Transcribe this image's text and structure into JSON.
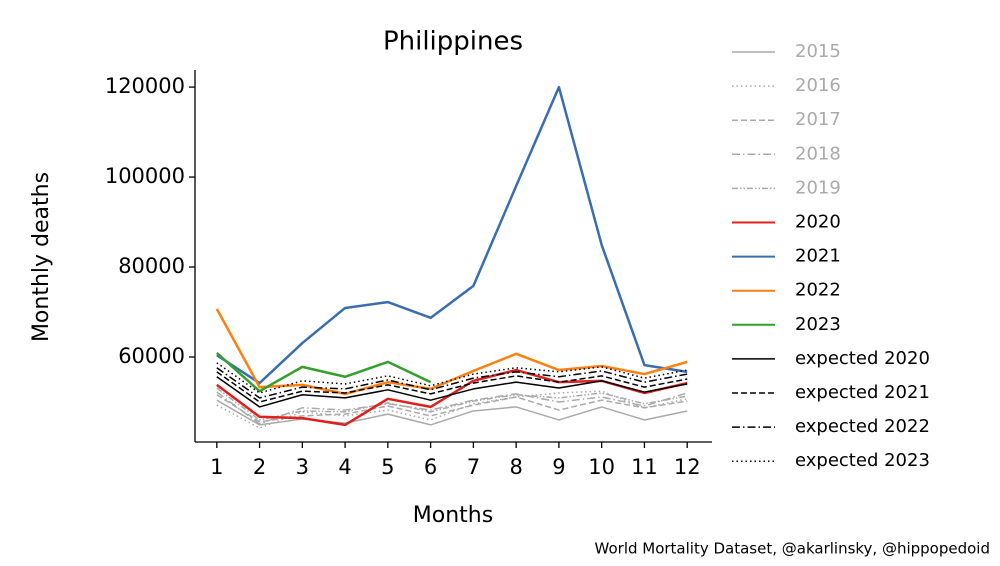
{
  "chart_data": {
    "type": "line",
    "title": "Philippines",
    "xlabel": "Months",
    "ylabel": "Monthly deaths",
    "source": "World Mortality Dataset, @akarlinsky, @hippopedoid",
    "x": [
      1,
      2,
      3,
      4,
      5,
      6,
      7,
      8,
      9,
      10,
      11,
      12
    ],
    "xlim": [
      0.49,
      12.58
    ],
    "xticks": [
      1,
      2,
      3,
      4,
      5,
      6,
      7,
      8,
      9,
      10,
      11,
      12
    ],
    "ylim": [
      41100,
      123800
    ],
    "yticks": [
      60000,
      80000,
      100000,
      120000
    ],
    "legend": "outside right",
    "series": [
      {
        "name": "2015",
        "color": "#aaaaaa",
        "linestyle": "solid",
        "width": 1.5,
        "legend_text_color": "#aaaaaa",
        "values": [
          50400,
          44900,
          46200,
          45300,
          47300,
          44900,
          48000,
          48900,
          46000,
          48900,
          46000,
          48000
        ]
      },
      {
        "name": "2016",
        "color": "#aaaaaa",
        "linestyle": "dotted",
        "width": 1.5,
        "legend_text_color": "#aaaaaa",
        "values": [
          49300,
          44200,
          47800,
          46900,
          48200,
          46000,
          49600,
          51100,
          52000,
          52400,
          48700,
          50700
        ]
      },
      {
        "name": "2017",
        "color": "#aaaaaa",
        "linestyle": "dashed",
        "width": 1.5,
        "legend_text_color": "#aaaaaa",
        "values": [
          51600,
          45600,
          46900,
          47300,
          49100,
          46900,
          49300,
          51100,
          48200,
          50400,
          48700,
          50200
        ]
      },
      {
        "name": "2018",
        "color": "#aaaaaa",
        "linestyle": "dashdot",
        "width": 1.5,
        "legend_text_color": "#aaaaaa",
        "values": [
          52200,
          45100,
          48700,
          48200,
          49600,
          48200,
          50400,
          51800,
          50000,
          51100,
          49100,
          52000
        ]
      },
      {
        "name": "2019",
        "color": "#aaaaaa",
        "linestyle": "dashdotdot",
        "width": 1.5,
        "legend_text_color": "#aaaaaa",
        "values": [
          53100,
          46000,
          48000,
          47800,
          49800,
          47800,
          50200,
          51600,
          50900,
          52000,
          49600,
          51300
        ]
      },
      {
        "name": "2020",
        "color": "#e0201f",
        "linestyle": "solid",
        "width": 2.5,
        "legend_text_color": "#000000",
        "values": [
          53800,
          46700,
          46400,
          44900,
          50700,
          48900,
          54700,
          57100,
          54400,
          54700,
          52000,
          54200
        ]
      },
      {
        "name": "2021",
        "color": "#3a6db0",
        "linestyle": "solid",
        "width": 2.5,
        "legend_text_color": "#000000",
        "values": [
          60400,
          54200,
          63100,
          70900,
          72200,
          68700,
          75800,
          98000,
          120000,
          84900,
          58200,
          56700
        ]
      },
      {
        "name": "2022",
        "color": "#ff8012",
        "linestyle": "solid",
        "width": 2.5,
        "legend_text_color": "#000000",
        "values": [
          70700,
          53300,
          53800,
          51800,
          54400,
          52900,
          56900,
          60700,
          57100,
          58000,
          56200,
          58900
        ]
      },
      {
        "name": "2023",
        "color": "#33a02c",
        "linestyle": "solid",
        "width": 2.5,
        "legend_text_color": "#000000",
        "values": [
          60900,
          52400,
          57800,
          55600,
          58900,
          54400,
          null,
          null,
          null,
          null,
          null,
          null
        ]
      },
      {
        "name": "expected 2020",
        "color": "#000000",
        "linestyle": "solid",
        "width": 1.5,
        "legend_text_color": "#000000",
        "values": [
          55600,
          48900,
          51600,
          50900,
          52700,
          50400,
          52900,
          54400,
          53100,
          54700,
          52200,
          54000
        ]
      },
      {
        "name": "expected 2021",
        "color": "#000000",
        "linestyle": "dashed",
        "width": 1.5,
        "legend_text_color": "#000000",
        "values": [
          56700,
          50000,
          52400,
          52000,
          53800,
          51800,
          54200,
          55800,
          54400,
          55800,
          53300,
          55100
        ]
      },
      {
        "name": "expected 2022",
        "color": "#000000",
        "linestyle": "dashdot",
        "width": 1.5,
        "legend_text_color": "#000000",
        "values": [
          57600,
          50900,
          53300,
          52900,
          54900,
          52700,
          55300,
          56700,
          55600,
          56900,
          54400,
          56200
        ]
      },
      {
        "name": "expected 2023",
        "color": "#000000",
        "linestyle": "dotted",
        "width": 1.5,
        "legend_text_color": "#000000",
        "values": [
          58700,
          52000,
          54700,
          54000,
          55800,
          53600,
          56200,
          57600,
          56700,
          57800,
          55300,
          57100
        ]
      }
    ]
  }
}
